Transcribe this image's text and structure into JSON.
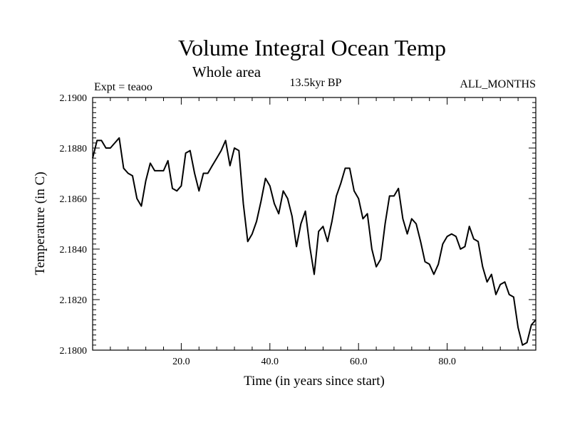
{
  "chart_data": {
    "type": "line",
    "title": "Volume Integral Ocean Temp",
    "subtitle": "Whole area",
    "annotations": {
      "left": "Expt = teaoo",
      "center": "13.5kyr BP",
      "right": "ALL_MONTHS"
    },
    "xlabel": "Time (in years since start)",
    "ylabel": "Temperature (in C)",
    "xlim": [
      0,
      100
    ],
    "ylim": [
      2.18,
      2.19
    ],
    "xticks": [
      20,
      40,
      60,
      80
    ],
    "xtick_labels": [
      "20.0",
      "40.0",
      "60.0",
      "80.0"
    ],
    "yticks": [
      2.18,
      2.182,
      2.184,
      2.186,
      2.188,
      2.19
    ],
    "ytick_labels": [
      "2.1800",
      "2.1820",
      "2.1840",
      "2.1860",
      "2.1880",
      "2.1900"
    ],
    "grid": false,
    "series": [
      {
        "name": "Volume Integral Ocean Temp",
        "color": "#000000",
        "x": [
          0,
          1,
          2,
          3,
          4,
          5,
          6,
          7,
          8,
          9,
          10,
          11,
          12,
          13,
          14,
          15,
          16,
          17,
          18,
          19,
          20,
          21,
          22,
          23,
          24,
          25,
          26,
          27,
          28,
          29,
          30,
          31,
          32,
          33,
          34,
          35,
          36,
          37,
          38,
          39,
          40,
          41,
          42,
          43,
          44,
          45,
          46,
          47,
          48,
          49,
          50,
          51,
          52,
          53,
          54,
          55,
          56,
          57,
          58,
          59,
          60,
          61,
          62,
          63,
          64,
          65,
          66,
          67,
          68,
          69,
          70,
          71,
          72,
          73,
          74,
          75,
          76,
          77,
          78,
          79,
          80,
          81,
          82,
          83,
          84,
          85,
          86,
          87,
          88,
          89,
          90,
          91,
          92,
          93,
          94,
          95,
          96,
          97,
          98,
          99,
          100
        ],
        "values": [
          2.1876,
          2.1883,
          2.1883,
          2.188,
          2.188,
          2.1882,
          2.1884,
          2.1872,
          2.187,
          2.1869,
          2.186,
          2.1857,
          2.1867,
          2.1874,
          2.1871,
          2.1871,
          2.1871,
          2.1875,
          2.1864,
          2.1863,
          2.1865,
          2.1878,
          2.1879,
          2.187,
          2.1863,
          2.187,
          2.187,
          2.1873,
          2.1876,
          2.1879,
          2.1883,
          2.1873,
          2.188,
          2.1879,
          2.1858,
          2.1843,
          2.1846,
          2.1851,
          2.1859,
          2.1868,
          2.1865,
          2.1858,
          2.1854,
          2.1863,
          2.186,
          2.1853,
          2.1841,
          2.185,
          2.1855,
          2.1841,
          2.183,
          2.1847,
          2.1849,
          2.1843,
          2.1851,
          2.1861,
          2.1866,
          2.1872,
          2.1872,
          2.1863,
          2.186,
          2.1852,
          2.1854,
          2.184,
          2.1833,
          2.1836,
          2.185,
          2.1861,
          2.1861,
          2.1864,
          2.1852,
          2.1846,
          2.1852,
          2.185,
          2.1843,
          2.1835,
          2.1834,
          2.183,
          2.1834,
          2.1842,
          2.1845,
          2.1846,
          2.1845,
          2.184,
          2.1841,
          2.1849,
          2.1844,
          2.1843,
          2.1833,
          2.1827,
          2.183,
          2.1822,
          2.1826,
          2.1827,
          2.1822,
          2.1821,
          2.1809,
          2.1802,
          2.1803,
          2.181,
          2.1812
        ]
      }
    ]
  }
}
